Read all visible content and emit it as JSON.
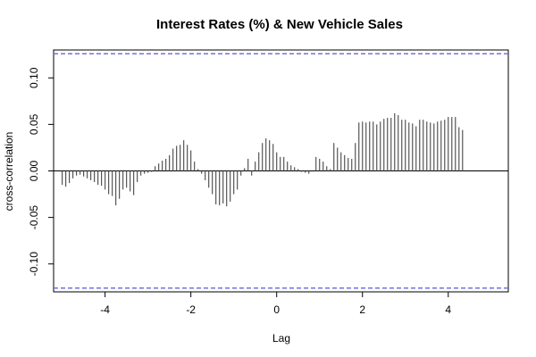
{
  "chart_data": {
    "type": "bar",
    "title": "Interest Rates (%) & New Vehicle Sales",
    "xlabel": "Lag",
    "ylabel": "cross-correlation",
    "xlim": [
      -5.2,
      5.4
    ],
    "ylim": [
      -0.13,
      0.13
    ],
    "x_ticks": [
      -4,
      -2,
      0,
      2,
      4
    ],
    "x_tick_labels": [
      "-4",
      "-2",
      "0",
      "2",
      "4"
    ],
    "y_ticks": [
      -0.1,
      -0.05,
      0,
      0.05,
      0.1
    ],
    "y_tick_labels": [
      "-0.10",
      "-0.05",
      "0.00",
      "0.05",
      "0.10"
    ],
    "confidence_bound": 0.126,
    "confidence_color": "#6666dd",
    "bar_color": "#555555",
    "lag_start": -5,
    "lag_step": 0.0833333,
    "values": [
      -0.015,
      -0.017,
      -0.013,
      -0.008,
      -0.005,
      -0.004,
      -0.006,
      -0.008,
      -0.01,
      -0.012,
      -0.015,
      -0.016,
      -0.02,
      -0.025,
      -0.027,
      -0.037,
      -0.03,
      -0.02,
      -0.018,
      -0.022,
      -0.026,
      -0.012,
      -0.005,
      -0.003,
      -0.002,
      -0.001,
      0.005,
      0.008,
      0.011,
      0.013,
      0.017,
      0.024,
      0.027,
      0.028,
      0.033,
      0.028,
      0.022,
      0.01,
      0.002,
      -0.003,
      -0.01,
      -0.018,
      -0.025,
      -0.036,
      -0.037,
      -0.035,
      -0.038,
      -0.033,
      -0.025,
      -0.02,
      -0.005,
      0.003,
      0.013,
      -0.005,
      0.01,
      0.02,
      0.03,
      0.035,
      0.033,
      0.029,
      0.02,
      0.015,
      0.015,
      0.01,
      0.006,
      0.004,
      0.002,
      -0.001,
      -0.002,
      -0.003,
      0.0,
      0.015,
      0.013,
      0.01,
      0.005,
      0.002,
      0.03,
      0.025,
      0.02,
      0.017,
      0.014,
      0.013,
      0.03,
      0.052,
      0.053,
      0.052,
      0.053,
      0.053,
      0.05,
      0.053,
      0.056,
      0.057,
      0.057,
      0.062,
      0.06,
      0.055,
      0.055,
      0.052,
      0.051,
      0.048,
      0.055,
      0.055,
      0.053,
      0.052,
      0.051,
      0.053,
      0.054,
      0.055,
      0.058,
      0.058,
      0.058,
      0.047,
      0.044
    ]
  }
}
